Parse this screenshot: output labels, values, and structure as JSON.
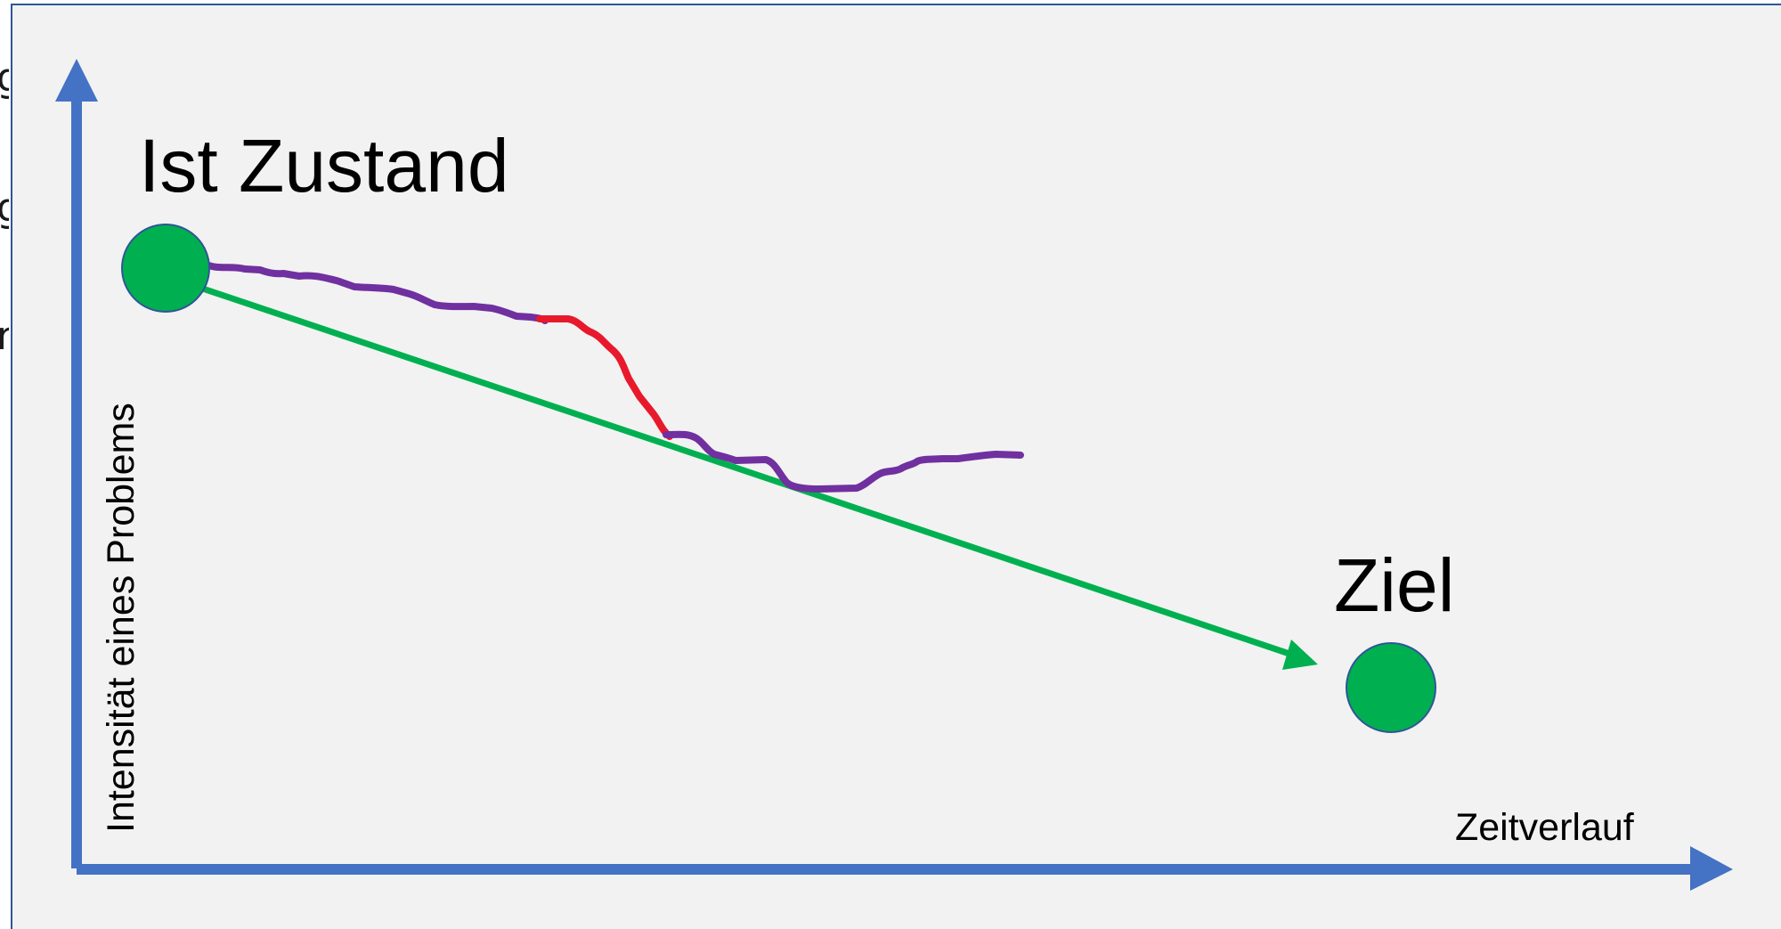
{
  "diagram": {
    "start_label": "Ist Zustand",
    "goal_label": "Ziel",
    "y_axis_label": "Intensität eines Problems",
    "x_axis_label": "Zeitverlauf",
    "edge_fragments": [
      "g",
      "g",
      "r"
    ]
  },
  "colors": {
    "background": "#f2f2f2",
    "axis": "#4472c4",
    "node_fill": "#00b050",
    "node_stroke": "#2f5597",
    "target_line": "#00b050",
    "actual_path": "#7030a0",
    "setback_path": "#e8192c"
  }
}
